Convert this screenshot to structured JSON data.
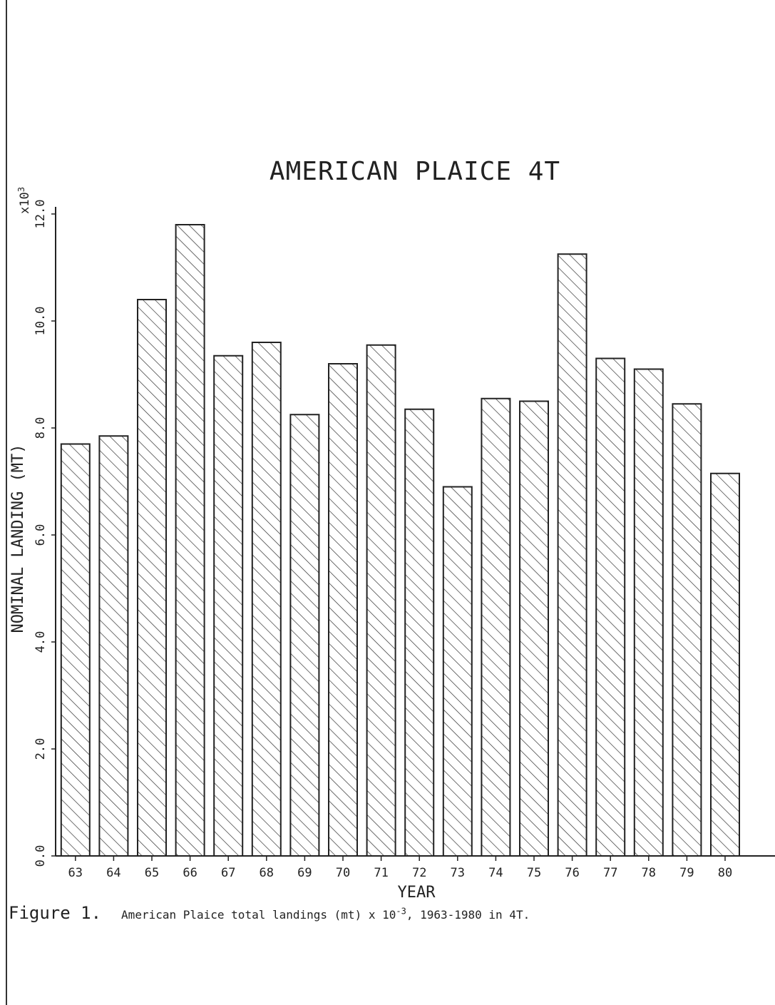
{
  "chart_data": {
    "type": "bar",
    "title": "AMERICAN PLAICE 4T",
    "xlabel": "YEAR",
    "ylabel": "NOMINAL LANDING (MT)",
    "y_multiplier": "x10",
    "y_multiplier_exp": "3",
    "categories": [
      "63",
      "64",
      "65",
      "66",
      "67",
      "68",
      "69",
      "70",
      "71",
      "72",
      "73",
      "74",
      "75",
      "76",
      "77",
      "78",
      "79",
      "80"
    ],
    "values": [
      7.7,
      7.85,
      10.4,
      11.8,
      9.35,
      9.6,
      8.25,
      9.2,
      9.55,
      8.35,
      6.9,
      8.55,
      8.5,
      11.25,
      9.3,
      9.1,
      8.45,
      7.15
    ],
    "ylim": [
      0,
      12
    ],
    "yticks": [
      0,
      2,
      4,
      6,
      8,
      10,
      12
    ],
    "ytick_labels": [
      "0.0",
      "2.0",
      "4.0",
      "6.0",
      "8.0",
      "10.0",
      "12.0"
    ],
    "grid": false,
    "bar_fill": "diagonal-hatch",
    "colors": {
      "ink": "#222222",
      "background": "#ffffff"
    }
  },
  "caption": {
    "figure_label": "Figure 1.",
    "text_before": "American Plaice total landings (mt) x 10",
    "exponent": "-3",
    "text_after": ", 1963-1980 in 4T."
  }
}
